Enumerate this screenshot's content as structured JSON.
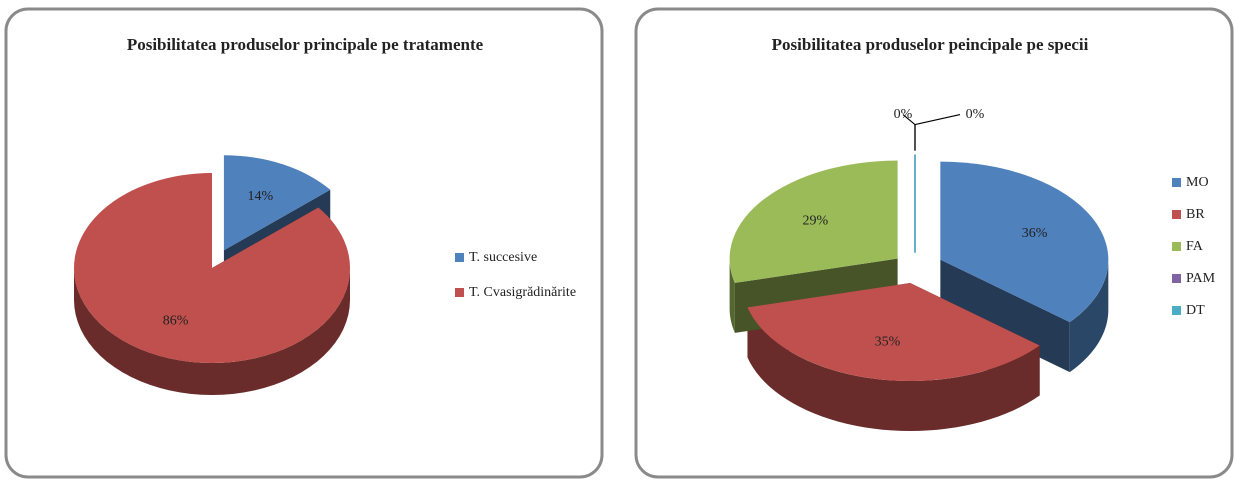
{
  "chart_data": [
    {
      "type": "pie3d",
      "title": "Posibilitatea produselor principale pe tratamente",
      "categories": [
        "T. succesive",
        "T. Cvasigrădinărite"
      ],
      "values": [
        14,
        86
      ],
      "value_labels": [
        "14%",
        "86%"
      ],
      "colors": [
        "#4f81bd",
        "#c0504d"
      ],
      "legend": "right"
    },
    {
      "type": "pie3d",
      "title": "Posibilitatea produselor peincipale pe specii",
      "categories": [
        "MO",
        "BR",
        "FA",
        "PAM",
        "DT"
      ],
      "values": [
        36,
        35,
        29,
        0,
        0
      ],
      "value_labels": [
        "36%",
        "35%",
        "29%",
        "0%",
        "0%"
      ],
      "colors": [
        "#4f81bd",
        "#c0504d",
        "#9bbb59",
        "#8064a2",
        "#4bacc6"
      ],
      "legend": "right"
    }
  ]
}
